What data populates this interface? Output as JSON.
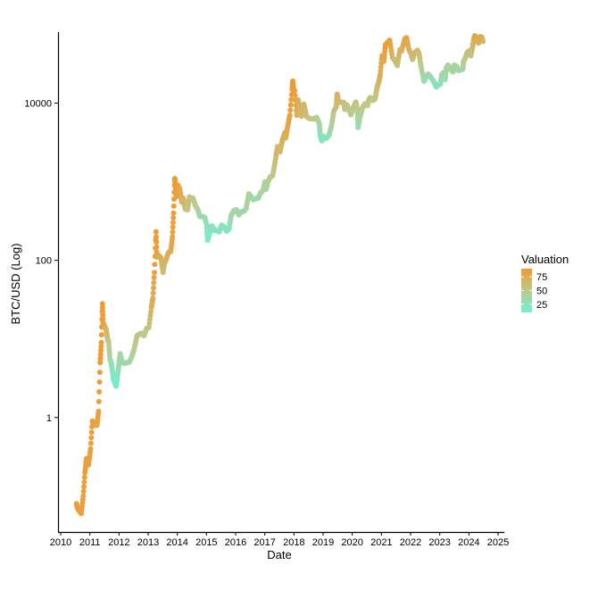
{
  "chart_data": {
    "type": "scatter",
    "title": "",
    "xlabel": "Date",
    "ylabel": "BTC/USD (Log)",
    "y_scale": "log10",
    "x_ticks": [
      "2010",
      "2011",
      "2012",
      "2013",
      "2014",
      "2015",
      "2016",
      "2017",
      "2018",
      "2019",
      "2020",
      "2021",
      "2022",
      "2023",
      "2024",
      "2025"
    ],
    "y_ticks": [
      {
        "value": 1,
        "label": "1"
      },
      {
        "value": 100,
        "label": "100"
      },
      {
        "value": 10000,
        "label": "10000"
      }
    ],
    "xlim": [
      "2010-01-01",
      "2025-01-01"
    ],
    "ylim": [
      0.035,
      80000
    ],
    "grid": false,
    "legend": {
      "title": "Valuation",
      "placement": "right",
      "breaks": [
        {
          "value": 75,
          "label": "75"
        },
        {
          "value": 50,
          "label": "50"
        },
        {
          "value": 25,
          "label": "25"
        }
      ],
      "range": [
        10,
        90
      ]
    },
    "colors": {
      "low": "#6ff0d6",
      "mid": "#bdc98c",
      "high": "#f29a30"
    },
    "series": [
      {
        "points": [
          [
            "2010-07-17",
            0.08,
            88
          ],
          [
            "2010-08-01",
            0.07,
            88
          ],
          [
            "2010-08-20",
            0.065,
            85
          ],
          [
            "2010-09-15",
            0.06,
            84
          ],
          [
            "2010-10-10",
            0.1,
            86
          ],
          [
            "2010-11-01",
            0.2,
            87
          ],
          [
            "2010-11-20",
            0.3,
            86
          ],
          [
            "2010-12-15",
            0.25,
            84
          ],
          [
            "2011-01-10",
            0.4,
            85
          ],
          [
            "2011-02-01",
            0.9,
            88
          ],
          [
            "2011-02-15",
            0.85,
            86
          ],
          [
            "2011-03-10",
            0.8,
            82
          ],
          [
            "2011-04-01",
            0.8,
            80
          ],
          [
            "2011-04-20",
            1.2,
            86
          ],
          [
            "2011-05-10",
            5,
            90
          ],
          [
            "2011-05-25",
            9,
            88
          ],
          [
            "2011-06-08",
            28,
            90
          ],
          [
            "2011-06-15",
            16,
            85
          ],
          [
            "2011-06-25",
            15,
            83
          ],
          [
            "2011-07-10",
            14,
            76
          ],
          [
            "2011-07-25",
            13,
            70
          ],
          [
            "2011-08-10",
            10,
            60
          ],
          [
            "2011-08-25",
            9,
            50
          ],
          [
            "2011-09-10",
            5.5,
            40
          ],
          [
            "2011-09-25",
            5,
            30
          ],
          [
            "2011-10-10",
            4,
            22
          ],
          [
            "2011-10-25",
            3,
            15
          ],
          [
            "2011-11-10",
            2.8,
            12
          ],
          [
            "2011-11-25",
            2.5,
            12
          ],
          [
            "2011-12-10",
            3.2,
            20
          ],
          [
            "2011-12-28",
            4.5,
            30
          ],
          [
            "2012-01-15",
            6.5,
            38
          ],
          [
            "2012-02-10",
            5,
            34
          ],
          [
            "2012-03-10",
            4.9,
            33
          ],
          [
            "2012-04-10",
            5,
            35
          ],
          [
            "2012-05-10",
            5.1,
            36
          ],
          [
            "2012-06-10",
            6,
            40
          ],
          [
            "2012-07-10",
            7.5,
            45
          ],
          [
            "2012-08-15",
            11,
            55
          ],
          [
            "2012-09-10",
            11.5,
            54
          ],
          [
            "2012-10-10",
            11.8,
            52
          ],
          [
            "2012-11-10",
            11,
            50
          ],
          [
            "2012-12-10",
            13.5,
            52
          ],
          [
            "2013-01-10",
            14,
            56
          ],
          [
            "2013-02-10",
            25,
            70
          ],
          [
            "2013-03-01",
            33,
            76
          ],
          [
            "2013-03-20",
            70,
            82
          ],
          [
            "2013-04-10",
            230,
            92
          ],
          [
            "2013-04-20",
            110,
            82
          ],
          [
            "2013-05-10",
            115,
            78
          ],
          [
            "2013-06-10",
            108,
            72
          ],
          [
            "2013-07-05",
            70,
            60
          ],
          [
            "2013-07-20",
            90,
            64
          ],
          [
            "2013-08-10",
            100,
            70
          ],
          [
            "2013-09-10",
            125,
            72
          ],
          [
            "2013-10-10",
            130,
            75
          ],
          [
            "2013-11-01",
            200,
            82
          ],
          [
            "2013-11-15",
            400,
            88
          ],
          [
            "2013-11-30",
            1100,
            92
          ],
          [
            "2013-12-10",
            850,
            90
          ],
          [
            "2013-12-20",
            650,
            86
          ],
          [
            "2014-01-10",
            900,
            86
          ],
          [
            "2014-02-01",
            800,
            80
          ],
          [
            "2014-02-25",
            550,
            70
          ],
          [
            "2014-03-15",
            620,
            68
          ],
          [
            "2014-04-10",
            450,
            60
          ],
          [
            "2014-05-10",
            440,
            55
          ],
          [
            "2014-06-01",
            640,
            58
          ],
          [
            "2014-06-20",
            600,
            56
          ],
          [
            "2014-07-15",
            620,
            54
          ],
          [
            "2014-08-15",
            500,
            48
          ],
          [
            "2014-09-15",
            440,
            42
          ],
          [
            "2014-10-10",
            360,
            36
          ],
          [
            "2014-11-10",
            360,
            34
          ],
          [
            "2014-12-10",
            350,
            32
          ],
          [
            "2015-01-05",
            280,
            26
          ],
          [
            "2015-01-14",
            180,
            15
          ],
          [
            "2015-02-10",
            220,
            18
          ],
          [
            "2015-03-10",
            275,
            24
          ],
          [
            "2015-04-10",
            240,
            20
          ],
          [
            "2015-05-10",
            240,
            20
          ],
          [
            "2015-06-10",
            230,
            20
          ],
          [
            "2015-07-10",
            280,
            26
          ],
          [
            "2015-08-10",
            265,
            24
          ],
          [
            "2015-09-10",
            235,
            20
          ],
          [
            "2015-10-10",
            250,
            22
          ],
          [
            "2015-11-05",
            370,
            36
          ],
          [
            "2015-12-10",
            430,
            40
          ],
          [
            "2016-01-10",
            440,
            38
          ],
          [
            "2016-02-10",
            380,
            34
          ],
          [
            "2016-03-10",
            415,
            36
          ],
          [
            "2016-04-10",
            420,
            35
          ],
          [
            "2016-05-10",
            450,
            36
          ],
          [
            "2016-06-15",
            700,
            46
          ],
          [
            "2016-07-10",
            650,
            40
          ],
          [
            "2016-08-10",
            590,
            34
          ],
          [
            "2016-09-10",
            610,
            33
          ],
          [
            "2016-10-10",
            620,
            32
          ],
          [
            "2016-11-10",
            720,
            36
          ],
          [
            "2016-12-10",
            780,
            40
          ],
          [
            "2017-01-05",
            1000,
            48
          ],
          [
            "2017-01-15",
            800,
            40
          ],
          [
            "2017-02-10",
            1000,
            44
          ],
          [
            "2017-03-10",
            1150,
            48
          ],
          [
            "2017-04-10",
            1200,
            50
          ],
          [
            "2017-05-10",
            1800,
            60
          ],
          [
            "2017-06-10",
            2800,
            70
          ],
          [
            "2017-07-10",
            2400,
            62
          ],
          [
            "2017-08-10",
            3400,
            72
          ],
          [
            "2017-09-10",
            4200,
            76
          ],
          [
            "2017-09-20",
            3600,
            70
          ],
          [
            "2017-10-10",
            4800,
            78
          ],
          [
            "2017-11-10",
            7000,
            84
          ],
          [
            "2017-12-10",
            15000,
            90
          ],
          [
            "2017-12-17",
            19000,
            92
          ],
          [
            "2017-12-28",
            14000,
            88
          ],
          [
            "2018-01-10",
            14500,
            86
          ],
          [
            "2018-02-06",
            7000,
            72
          ],
          [
            "2018-02-20",
            11000,
            78
          ],
          [
            "2018-03-10",
            9000,
            70
          ],
          [
            "2018-04-05",
            6800,
            62
          ],
          [
            "2018-05-05",
            9700,
            68
          ],
          [
            "2018-06-10",
            6700,
            58
          ],
          [
            "2018-07-10",
            6400,
            55
          ],
          [
            "2018-08-10",
            6300,
            52
          ],
          [
            "2018-09-10",
            6300,
            50
          ],
          [
            "2018-10-10",
            6600,
            48
          ],
          [
            "2018-11-15",
            5500,
            40
          ],
          [
            "2018-11-25",
            3900,
            25
          ],
          [
            "2018-12-15",
            3300,
            20
          ],
          [
            "2018-12-30",
            3800,
            24
          ],
          [
            "2019-01-20",
            3550,
            22
          ],
          [
            "2019-02-15",
            3600,
            24
          ],
          [
            "2019-03-15",
            3900,
            28
          ],
          [
            "2019-04-15",
            5100,
            40
          ],
          [
            "2019-05-15",
            7900,
            54
          ],
          [
            "2019-06-15",
            9000,
            60
          ],
          [
            "2019-06-26",
            13000,
            70
          ],
          [
            "2019-07-15",
            10200,
            62
          ],
          [
            "2019-08-15",
            10300,
            60
          ],
          [
            "2019-09-15",
            10200,
            58
          ],
          [
            "2019-10-01",
            8300,
            52
          ],
          [
            "2019-10-26",
            9500,
            56
          ],
          [
            "2019-11-15",
            8500,
            52
          ],
          [
            "2019-12-15",
            7100,
            46
          ],
          [
            "2020-01-15",
            8800,
            52
          ],
          [
            "2020-02-14",
            10300,
            58
          ],
          [
            "2020-03-01",
            8600,
            50
          ],
          [
            "2020-03-13",
            4900,
            28
          ],
          [
            "2020-04-10",
            6900,
            40
          ],
          [
            "2020-05-10",
            8800,
            48
          ],
          [
            "2020-06-10",
            9800,
            52
          ],
          [
            "2020-07-10",
            9300,
            48
          ],
          [
            "2020-07-28",
            11000,
            54
          ],
          [
            "2020-08-15",
            11800,
            56
          ],
          [
            "2020-09-15",
            10800,
            50
          ],
          [
            "2020-10-15",
            11400,
            52
          ],
          [
            "2020-11-05",
            15500,
            62
          ],
          [
            "2020-12-01",
            19000,
            66
          ],
          [
            "2020-12-17",
            23000,
            72
          ],
          [
            "2021-01-08",
            40000,
            84
          ],
          [
            "2021-02-01",
            34000,
            78
          ],
          [
            "2021-02-20",
            55000,
            88
          ],
          [
            "2021-03-15",
            58000,
            86
          ],
          [
            "2021-04-14",
            63000,
            88
          ],
          [
            "2021-05-19",
            38000,
            68
          ],
          [
            "2021-06-10",
            36000,
            62
          ],
          [
            "2021-07-20",
            30000,
            56
          ],
          [
            "2021-08-20",
            48000,
            72
          ],
          [
            "2021-09-10",
            46000,
            68
          ],
          [
            "2021-10-20",
            65000,
            82
          ],
          [
            "2021-11-10",
            68000,
            84
          ],
          [
            "2021-12-10",
            48000,
            70
          ],
          [
            "2022-01-10",
            42000,
            66
          ],
          [
            "2022-01-25",
            36000,
            60
          ],
          [
            "2022-02-15",
            43000,
            64
          ],
          [
            "2022-03-28",
            47000,
            66
          ],
          [
            "2022-04-20",
            41000,
            60
          ],
          [
            "2022-05-12",
            29000,
            46
          ],
          [
            "2022-06-18",
            19000,
            32
          ],
          [
            "2022-07-10",
            21000,
            34
          ],
          [
            "2022-08-10",
            23500,
            36
          ],
          [
            "2022-09-10",
            21500,
            32
          ],
          [
            "2022-10-10",
            19300,
            28
          ],
          [
            "2022-11-10",
            17000,
            24
          ],
          [
            "2022-11-20",
            16000,
            22
          ],
          [
            "2022-12-10",
            17100,
            24
          ],
          [
            "2023-01-10",
            17400,
            26
          ],
          [
            "2023-01-25",
            23000,
            34
          ],
          [
            "2023-02-20",
            24500,
            36
          ],
          [
            "2023-03-10",
            20000,
            30
          ],
          [
            "2023-03-25",
            28000,
            40
          ],
          [
            "2023-04-15",
            30500,
            42
          ],
          [
            "2023-05-15",
            27000,
            38
          ],
          [
            "2023-06-15",
            25000,
            36
          ],
          [
            "2023-07-01",
            30500,
            42
          ],
          [
            "2023-08-01",
            29300,
            40
          ],
          [
            "2023-08-20",
            26000,
            36
          ],
          [
            "2023-09-15",
            26500,
            36
          ],
          [
            "2023-10-15",
            27000,
            38
          ],
          [
            "2023-10-28",
            34500,
            46
          ],
          [
            "2023-11-15",
            37000,
            50
          ],
          [
            "2023-12-10",
            44000,
            56
          ],
          [
            "2024-01-10",
            46500,
            58
          ],
          [
            "2024-01-25",
            40000,
            52
          ],
          [
            "2024-02-15",
            52000,
            64
          ],
          [
            "2024-03-05",
            66000,
            76
          ],
          [
            "2024-03-14",
            72000,
            82
          ],
          [
            "2024-04-05",
            68000,
            78
          ],
          [
            "2024-05-01",
            58000,
            68
          ],
          [
            "2024-05-20",
            70000,
            78
          ],
          [
            "2024-06-10",
            69000,
            76
          ],
          [
            "2024-06-25",
            61000,
            68
          ]
        ]
      }
    ]
  }
}
